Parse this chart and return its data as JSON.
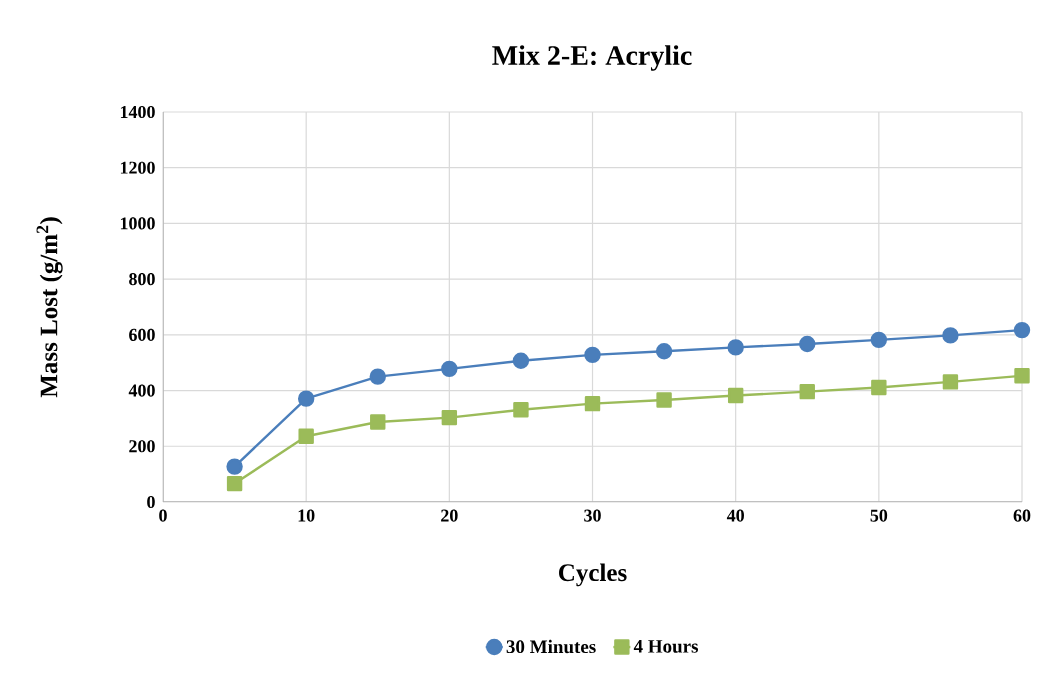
{
  "chart_data": {
    "type": "line",
    "title": "Mix 2-E: Acrylic",
    "xlabel": "Cycles",
    "ylabel": "Mass Lost (g/m$^{2}$)",
    "x": [
      5,
      10,
      15,
      20,
      25,
      30,
      35,
      40,
      45,
      50,
      55,
      60
    ],
    "series": [
      {
        "name": "30 Minutes",
        "color": "#4a7ebb",
        "marker": "circle",
        "values": [
          127,
          371,
          450,
          478,
          507,
          528,
          541,
          555,
          567,
          582,
          598,
          617
        ]
      },
      {
        "name": "4 Hours",
        "color": "#9bbb59",
        "marker": "square",
        "values": [
          66,
          236,
          287,
          303,
          331,
          353,
          366,
          382,
          396,
          411,
          431,
          453
        ]
      }
    ],
    "xlim": [
      0,
      60
    ],
    "xticks": [
      0,
      10,
      20,
      30,
      40,
      50,
      60
    ],
    "ylim": [
      0,
      1400
    ],
    "yticks": [
      0,
      200,
      400,
      600,
      800,
      1000,
      1200,
      1400
    ],
    "grid": true,
    "legend": "bottom",
    "line_style": "solid"
  }
}
